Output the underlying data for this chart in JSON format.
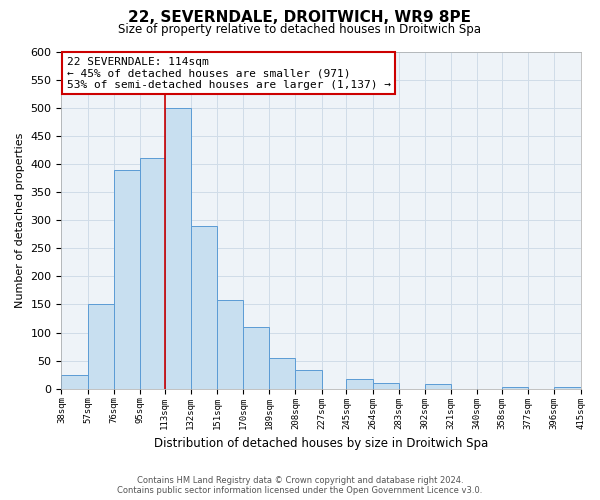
{
  "title": "22, SEVERNDALE, DROITWICH, WR9 8PE",
  "subtitle": "Size of property relative to detached houses in Droitwich Spa",
  "xlabel": "Distribution of detached houses by size in Droitwich Spa",
  "ylabel": "Number of detached properties",
  "bar_edges": [
    38,
    57,
    76,
    95,
    113,
    132,
    151,
    170,
    189,
    208,
    227,
    245,
    264,
    283,
    302,
    321,
    340,
    358,
    377,
    396,
    415
  ],
  "bar_heights": [
    25,
    150,
    390,
    410,
    500,
    290,
    158,
    110,
    54,
    33,
    0,
    17,
    10,
    0,
    9,
    0,
    0,
    3,
    0,
    4
  ],
  "bar_color": "#c8dff0",
  "bar_edge_color": "#5b9bd5",
  "property_line_x": 113,
  "property_line_color": "#cc0000",
  "annotation_title": "22 SEVERNDALE: 114sqm",
  "annotation_line1": "← 45% of detached houses are smaller (971)",
  "annotation_line2": "53% of semi-detached houses are larger (1,137) →",
  "annotation_box_facecolor": "#ffffff",
  "annotation_box_edgecolor": "#cc0000",
  "ylim": [
    0,
    600
  ],
  "yticks": [
    0,
    50,
    100,
    150,
    200,
    250,
    300,
    350,
    400,
    450,
    500,
    550,
    600
  ],
  "footer_line1": "Contains HM Land Registry data © Crown copyright and database right 2024.",
  "footer_line2": "Contains public sector information licensed under the Open Government Licence v3.0.",
  "background_color": "#ffffff",
  "grid_color": "#d0dce8",
  "plot_bg_color": "#eef3f8"
}
